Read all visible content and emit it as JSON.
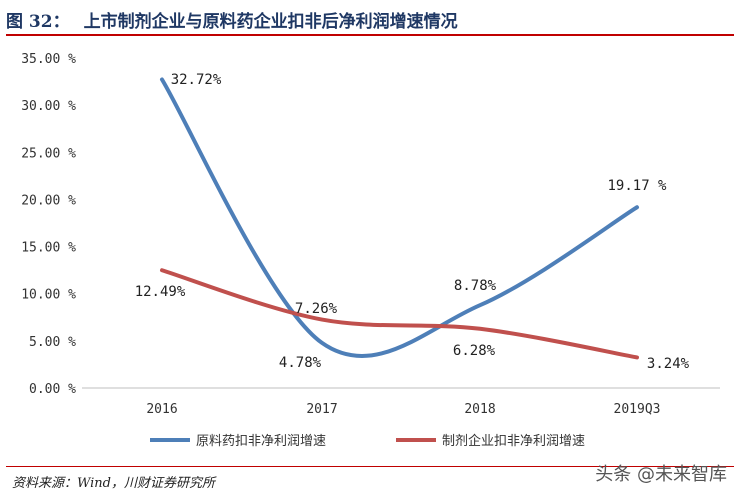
{
  "title": {
    "number": "图 32：",
    "text": "上市制剂企业与原料药企业扣非后净利润增速情况"
  },
  "source": "资料来源：Wind，川财证券研究所",
  "watermark": "头条 @未来智库",
  "chart_data": {
    "type": "line",
    "categories": [
      "2016",
      "2017",
      "2018",
      "2019Q3"
    ],
    "yticks": [
      "0.00 %",
      "5.00 %",
      "10.00 %",
      "15.00 %",
      "20.00 %",
      "25.00 %",
      "30.00 %",
      "35.00 %"
    ],
    "ylim": [
      0,
      35
    ],
    "grid": false,
    "legend_position": "bottom",
    "series": [
      {
        "name": "原料药扣非净利润增速",
        "color": "#4e7fb8",
        "values": [
          32.72,
          4.78,
          8.78,
          19.17
        ],
        "labels": [
          "32.72%",
          "4.78%",
          "8.78%",
          "19.17 %"
        ]
      },
      {
        "name": "制剂企业扣非净利润增速",
        "color": "#c0504d",
        "values": [
          12.49,
          7.26,
          6.28,
          3.24
        ],
        "labels": [
          "12.49%",
          "7.26%",
          "6.28%",
          "3.24%"
        ]
      }
    ]
  }
}
